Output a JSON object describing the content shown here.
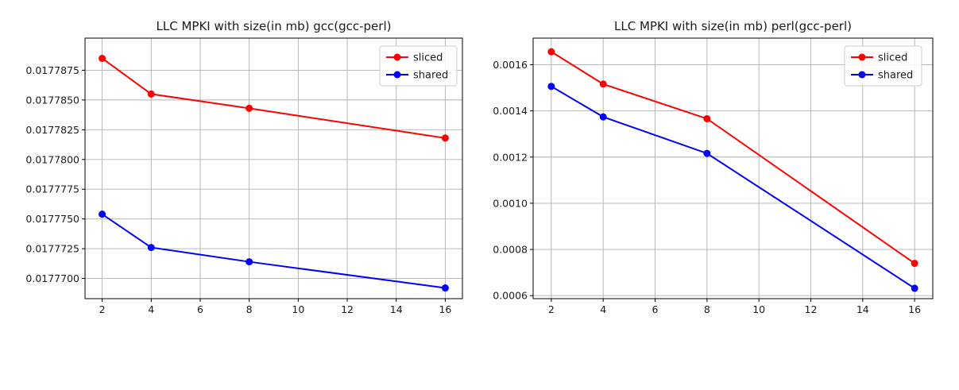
{
  "chart_data": [
    {
      "type": "line",
      "title": "LLC MPKI with size(in mb) gcc(gcc-perl)",
      "xlabel": "",
      "ylabel": "",
      "x": [
        2,
        4,
        8,
        16
      ],
      "xticks": [
        2,
        4,
        6,
        8,
        10,
        12,
        14,
        16
      ],
      "xlim": [
        1.3,
        16.7
      ],
      "yticks": [
        0.01777,
        0.017772500000000004,
        0.017775,
        0.0177775,
        0.01778,
        0.0177825,
        0.017785,
        0.0177875
      ],
      "ytick_labels": [
        "0.0177700",
        "0.0177725",
        "0.0177750",
        "0.0177775",
        "0.0177800",
        "0.0177825",
        "0.0177850",
        "0.0177875"
      ],
      "ylim": [
        0.0177683,
        0.0177902
      ],
      "grid": true,
      "legend": "top-right",
      "series": [
        {
          "name": "sliced",
          "color": "#ff0000",
          "values": [
            0.0177885,
            0.0177855,
            0.0177843,
            0.0177818
          ]
        },
        {
          "name": "shared",
          "color": "#0000ff",
          "values": [
            0.0177754,
            0.0177726,
            0.0177714,
            0.0177692
          ]
        }
      ]
    },
    {
      "type": "line",
      "title": "LLC MPKI with size(in mb) perl(gcc-perl)",
      "xlabel": "",
      "ylabel": "",
      "x": [
        2,
        4,
        8,
        16
      ],
      "xticks": [
        2,
        4,
        6,
        8,
        10,
        12,
        14,
        16
      ],
      "xlim": [
        1.3,
        16.7
      ],
      "yticks": [
        0.0006,
        0.0008,
        0.001,
        0.0012,
        0.0014,
        0.0016
      ],
      "ytick_labels": [
        "0.0006",
        "0.0008",
        "0.0010",
        "0.0012",
        "0.0014",
        "0.0016"
      ],
      "ylim": [
        0.000587,
        0.001715
      ],
      "grid": true,
      "legend": "top-right",
      "series": [
        {
          "name": "sliced",
          "color": "#ff0000",
          "values": [
            0.001656,
            0.001516,
            0.001366,
            0.00074
          ]
        },
        {
          "name": "shared",
          "color": "#0000ff",
          "values": [
            0.001506,
            0.001374,
            0.001216,
            0.000632
          ]
        }
      ]
    }
  ]
}
